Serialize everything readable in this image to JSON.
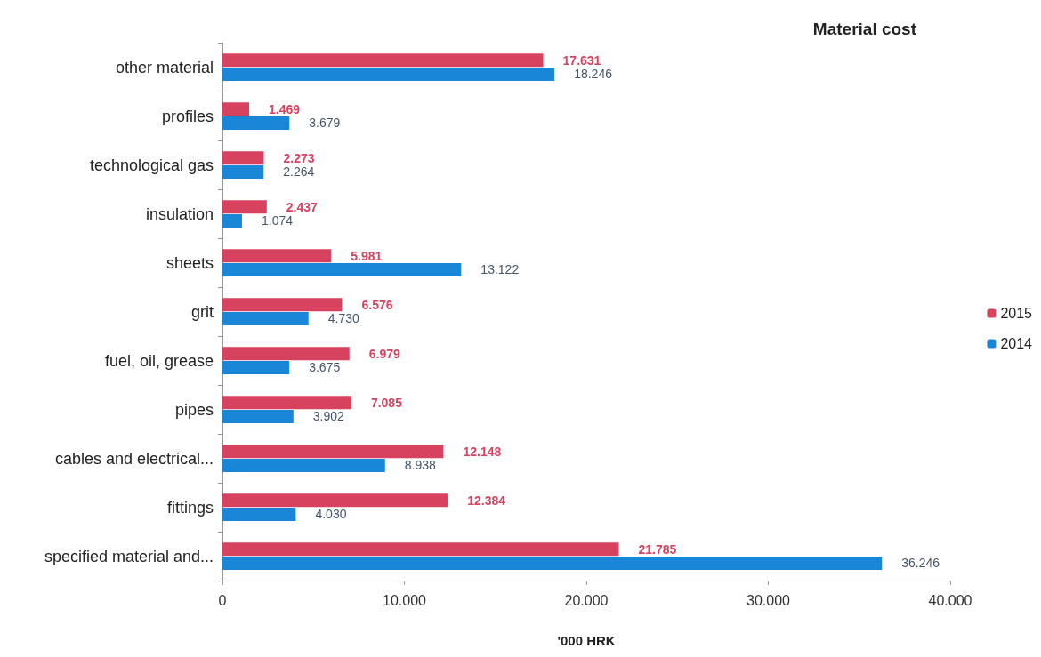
{
  "chart_data": {
    "type": "bar",
    "orientation": "horizontal",
    "title": "Material cost",
    "xlabel": "'000 HRK",
    "categories": [
      "other material",
      "profiles",
      "technological gas",
      "insulation",
      "sheets",
      "grit",
      "fuel, oil, grease",
      "pipes",
      "cables and electrical...",
      "fittings",
      "specified material and..."
    ],
    "series": [
      {
        "name": "2015",
        "color": "#d7425f",
        "values": [
          17631,
          1469,
          2273,
          2437,
          5981,
          6576,
          6979,
          7085,
          12148,
          12384,
          21785
        ],
        "value_labels": [
          "17.631",
          "1.469",
          "2.273",
          "2.437",
          "5.981",
          "6.576",
          "6.979",
          "7.085",
          "12.148",
          "12.384",
          "21.785"
        ]
      },
      {
        "name": "2014",
        "color": "#1a86d8",
        "values": [
          18246,
          3679,
          2264,
          1074,
          13122,
          4730,
          3675,
          3902,
          8938,
          4030,
          36246
        ],
        "value_labels": [
          "18.246",
          "3.679",
          "2.264",
          "1.074",
          "13.122",
          "4.730",
          "3.675",
          "3.902",
          "8.938",
          "4.030",
          "36.246"
        ]
      }
    ],
    "xlim": [
      0,
      40000
    ],
    "xticks": [
      0,
      {
        "value": 10000,
        "label": "10.000"
      },
      {
        "value": 20000,
        "label": "20.000"
      },
      {
        "value": 30000,
        "label": "30.000"
      },
      {
        "value": 40000,
        "label": "40.000"
      }
    ],
    "grid": false,
    "legend": "right"
  }
}
